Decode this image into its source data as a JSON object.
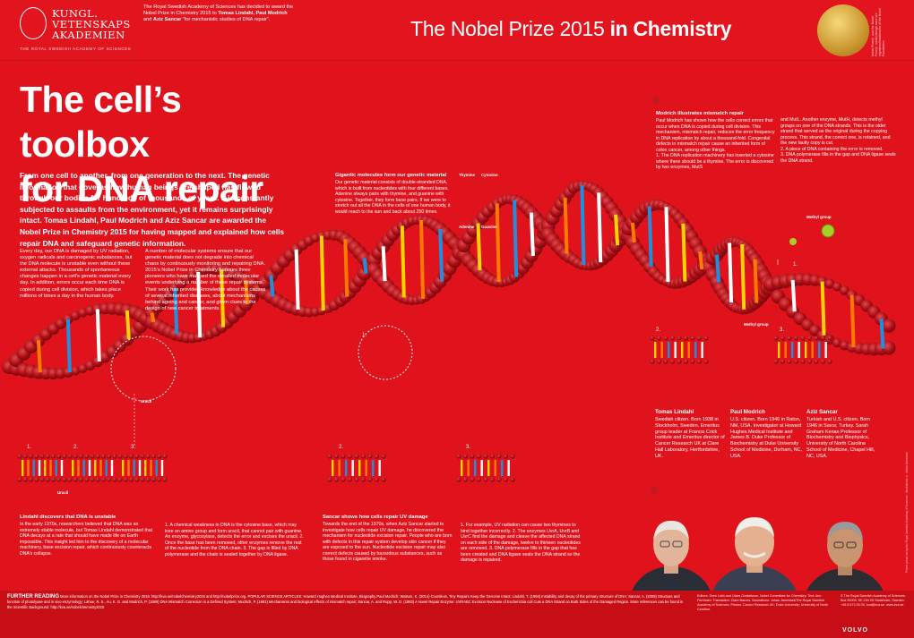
{
  "header": {
    "org_line1": "KUNGL.",
    "org_line2": "VETENSKAPS",
    "org_line3": "AKADEMIEN",
    "org_sub": "THE ROYAL SWEDISH ACADEMY OF SCIENCES",
    "announce_1": "The Royal Swedish Academy of Sciences has decided to award the Nobel Prize in Chemistry 2015 to",
    "announce_names": "Tomas Lindahl, Paul Modrich",
    "announce_and": "and",
    "announce_sancar": "Aziz Sancar",
    "announce_2": "\"for mechanistic studies of DNA repair\".",
    "prize_title_normal": "The Nobel Prize 2015",
    "prize_title_bold": "in Chemistry",
    "medal_caption": "Nobel Prize® and the Nobel Prize® medal design mark are registered trademarks of the Nobel Foundation"
  },
  "headline": {
    "line1": "The cell’s toolbox",
    "line2": "for DNA repair"
  },
  "lede": "From one cell to another, from one generation to the next. The genetic information that governs how human beings are shaped has flowed through our bodies for hundreds of thousands of years. It is constantly subjected to assaults from the environment, yet it remains surprisingly intact. Tomas Lindahl, Paul Modrich and Aziz Sancar are awarded the Nobel Prize in Chemistry 2015 for having mapped and explained how cells repair DNA and safeguard genetic information.",
  "intro": {
    "col1": "Every day, our DNA is damaged by UV radiation, oxygen radicals and carcinogenic substances, but the DNA molecule is unstable even without these external attacks. Thousands of spontaneous changes happen in a cell’s genetic material every day. In addition, errors occur each time DNA is copied during cell division, which takes place millions of times a day in the human body.",
    "col2": "A number of molecular systems ensure that our genetic material does not degrade into chemical chaos by continuously monitoring and repairing DNA. 2015’s Nobel Prize in Chemistry honours three pioneers who have mapped the detailed molecular events underlying a number of these repair systems. Their work has provided knowledge about the causes of several inherited diseases, about mechanisms behind ageing and cancer, and given clues to the design of new cancer treatments."
  },
  "gigantic": {
    "title": "Gigantic molecules form our genetic material",
    "body": "Our genetic material consists of double-stranded DNA, which is built from nucleotides with four different bases. Adenine always pairs with thymine, and guanine with cytosine. Together, they form base pairs. If we were to stretch out all the DNA in the cells of one human body, it would reach to the sun and back about 250 times.",
    "thymine": "Thymine",
    "cytosine": "Cytosine",
    "adenine": "Adenine",
    "guanine": "Guanine"
  },
  "modrich": {
    "title": "Modrich illustrates mismatch repair",
    "col1": "Paul Modrich has shown how the cells correct errors that occur when DNA is copied during cell division. This mechanism, mismatch repair, reduces the error frequency in DNA replication by about a thousand-fold. Congenital defects in mismatch repair cause an inherited form of colon cancer, among other things.",
    "step1": "1. The DNA replication machinery has inserted a cytosine where there should be a thymine. The error is discovered by two enzymes, MutS",
    "col2": "and MutL. Another enzyme, MutH, detects methyl groups on one of the DNA strands. This is the older strand that served as the original during the copying process. This strand, the correct one, is retained, and the new faulty copy is cut.",
    "step2": "2. A piece of DNA containing the error is removed.",
    "step3": "3. DNA polymerase fills in the gap and DNA ligase seals the DNA strand.",
    "methyl": "Methyl group",
    "methyl2": "Methyl group"
  },
  "steps": {
    "s1": "1.",
    "s2": "2.",
    "s3": "3.",
    "m1": "1.",
    "m2": "2.",
    "m3": "3.",
    "b1": "1.",
    "b2": "2.",
    "b3": "3.",
    "b4": "2.",
    "b5": "3.",
    "uracil": "Uracil",
    "uracil2": "Uracil"
  },
  "lindahl": {
    "title": "Lindahl discovers that DNA is unstable",
    "col1": "In the early 1970s, researchers believed that DNA was an extremely stable molecule, but Tomas Lindahl demonstrated that DNA decays at a rate that should have made life on Earth impossible. This insight led him to the discovery of a molecular machinery, base excision repair, which continuously counteracts DNA’s collapse.",
    "col2": "1. A chemical weakness in DNA is the cytosine base, which may lose an amino group and form uracil, that cannot pair with guanine. An enzyme, glycosylase, detects the error and excises the uracil. 2. Once the base has been removed, other enzymes remove the rest of the nucleotide from the DNA chain. 3. The gap is filled by DNA polymerase and the chain is sealed together by DNA ligase."
  },
  "sancar": {
    "title": "Sancar shows how cells repair UV damage",
    "col1": "Towards the end of the 1970s, when Aziz Sancar started to investigate how cells repair UV damage, he discovered the mechanism for nucleotide excision repair. People who are born with defects in this repair system develop skin cancer if they are exposed to the sun. Nucleotide excision repair may also correct defects caused by hazardous substances, such as those found in cigarette smoke.",
    "col2": "1. For example, UV radiation can cause two thymines to bind together incorrectly. 2. The enzymes UvrA, UvrB and UvrC find the damage and cleave the affected DNA strand on each side of the damage, twelve to thirteen nucleotides are removed. 3. DNA polymerase fills in the gap that has been created and DNA ligase seals the DNA strand so the damage is repaired."
  },
  "laureates": [
    {
      "name": "Tomas Lindahl",
      "bio": "Swedish citizen. Born 1938 in Stockholm, Sweden. Emeritus group leader at Francis Crick Institute and Emeritus director of Cancer Research UK at Clare Hall Laboratory, Hertfordshire, UK."
    },
    {
      "name": "Paul Modrich",
      "bio": "U.S. citizen. Born 1946 in Raton, NM, USA. Investigator at Howard Hughes Medical Institute and James B. Duke Professor of Biochemistry at Duke University School of Medicine, Durham, NC, USA."
    },
    {
      "name": "Aziz Sancar",
      "bio": "Turkish and U.S. citizen. Born 1946 in Savur, Turkey. Sarah Graham Kenan Professor of Biochemistry and Biophysics, University of North Carolina School of Medicine, Chapel Hill, NC, USA."
    }
  ],
  "footer": {
    "label": "FURTHER READING",
    "text": "More information on the Nobel Prize in Chemistry 2015: http://kva.se/nobelchemistry2015 and http://nobelprize.org. POPULAR SCIENCE ARTICLES: Howard Hughes Medical Institute, Biography Paul Modrich; Watson, K. (2014) Countless, Tiny Repairs Keep the Genome Intact; Lindahl, T. (1993) Instability and decay of the primary structure of DNA; Sancar, A. (2008) Structure and function of photolyase and in vivo enzymology; Lahue, R. S., Au, K. G. and Modrich, P. (1989) DNA Mismatch Correction in a Defined System; Modrich, P. (1991) Mechanisms and biological effects of mismatch repair; Sancar, A. and Rupp, W. D. (1983) A Novel Repair Enzyme: UVRABC Excision Nuclease of Escherichia coli Cuts a DNA Strand on Both Sides of the Damaged Region. More references can be found in the Scientific Background: http://kva.se/nobelchemistry2015",
    "credits": "Editors: Sven Lidin and Claes Gustafsson, Nobel Committee for Chemistry. Text: Ann Fernholm. Translation: Clare Barnes. Illustrations: Johan Jarnestad/The Royal Swedish Academy of Sciences. Photos: Cancer Research UK; Duke University; University of North Carolina.",
    "kva": "© The Royal Swedish Academy of Sciences. Box 50005, SE-104 05 Stockholm, Sweden. +46 8 673 95 00, kva@kva.se. www.kva.se",
    "volvo": "VOLVO"
  },
  "side_credit": "Poster produced by the Royal Swedish Academy of Sciences · Illustrations © Johan Jarnestad"
}
